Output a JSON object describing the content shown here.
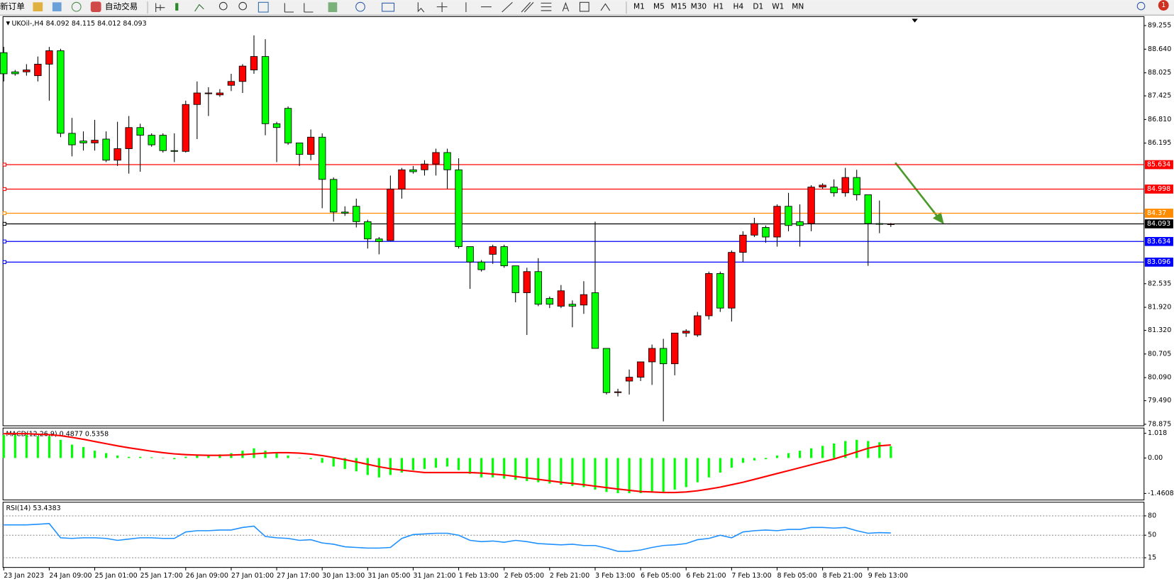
{
  "toolbar": {
    "new_order": "新订单",
    "auto_trading": "自动交易",
    "timeframes": [
      "M1",
      "M5",
      "M15",
      "M30",
      "H1",
      "H4",
      "D1",
      "W1",
      "MN"
    ],
    "notifications": 1
  },
  "chart_data": [
    {
      "type": "candlestick",
      "symbol": "UKOil-,H4",
      "categories": [
        "23 Jan 2023",
        null,
        null,
        null,
        "24 Jan 09:00",
        null,
        null,
        null,
        "25 Jan 01:00",
        null,
        null,
        null,
        "25 Jan 17:00",
        null,
        null,
        null,
        "26 Jan 09:00",
        null,
        null,
        null,
        "27 Jan 01:00",
        null,
        null,
        null,
        "27 Jan 17:00",
        null,
        null,
        null,
        "30 Jan 13:00",
        null,
        null,
        null,
        "31 Jan 05:00",
        null,
        null,
        null,
        "31 Jan 21:00",
        null,
        null,
        null,
        "1 Feb 13:00",
        null,
        null,
        null,
        "2 Feb 05:00",
        null,
        null,
        null,
        "2 Feb 21:00",
        null,
        null,
        null,
        "3 Feb 13:00",
        null,
        null,
        null,
        "6 Feb 05:00",
        null,
        null,
        null,
        "6 Feb 21:00",
        null,
        null,
        null,
        "7 Feb 13:00",
        null,
        null,
        null,
        "8 Feb 05:00",
        null,
        null,
        null,
        "8 Feb 21:00",
        null,
        null,
        null,
        "9 Feb 13:00",
        null,
        null
      ],
      "open": [
        88.55,
        88.05,
        88.05,
        87.95,
        88.25,
        88.6,
        86.45,
        86.25,
        86.2,
        86.3,
        85.75,
        86.05,
        86.6,
        86.4,
        86.4,
        86.0,
        85.98,
        87.2,
        87.5,
        87.45,
        87.7,
        87.8,
        88.1,
        88.45,
        86.7,
        87.1,
        86.2,
        85.9,
        86.35,
        85.25,
        84.4,
        84.55,
        84.15,
        83.7,
        83.66,
        85.0,
        85.5,
        85.5,
        85.65,
        85.95,
        85.5,
        83.5,
        83.1,
        83.3,
        83.5,
        83.0,
        82.3,
        82.85,
        82.15,
        81.95,
        82.0,
        81.98,
        82.3,
        80.85,
        79.7,
        80.0,
        80.1,
        80.5,
        80.85,
        80.45,
        81.25,
        81.2,
        81.7,
        82.8,
        81.9,
        83.35,
        83.8,
        84.0,
        83.75,
        84.55,
        84.15,
        84.1,
        85.05,
        85.05,
        84.9,
        85.3,
        84.85,
        84.1,
        84.092
      ],
      "high": [
        88.7,
        88.1,
        88.25,
        88.45,
        88.7,
        88.65,
        86.85,
        86.5,
        86.8,
        86.5,
        86.75,
        86.9,
        86.7,
        86.45,
        86.45,
        86.45,
        87.3,
        87.8,
        87.65,
        87.6,
        88.0,
        88.25,
        89.0,
        88.9,
        86.75,
        87.15,
        86.2,
        86.55,
        86.45,
        85.3,
        84.55,
        84.75,
        84.2,
        83.75,
        85.35,
        85.55,
        85.6,
        85.75,
        86.05,
        86.05,
        85.8,
        83.5,
        83.15,
        83.55,
        83.55,
        83.0,
        82.95,
        83.2,
        82.2,
        82.5,
        82.1,
        82.6,
        84.15,
        80.85,
        79.8,
        80.3,
        80.5,
        80.95,
        81.1,
        81.25,
        81.35,
        81.8,
        82.85,
        82.85,
        83.4,
        83.9,
        84.25,
        84.05,
        84.6,
        84.9,
        84.6,
        85.1,
        85.15,
        85.25,
        85.55,
        85.5,
        84.85,
        84.7,
        84.115
      ],
      "low": [
        87.8,
        87.95,
        87.95,
        87.8,
        87.3,
        86.35,
        85.85,
        86.0,
        86.0,
        85.7,
        85.6,
        85.4,
        85.45,
        86.1,
        85.95,
        85.7,
        85.95,
        86.3,
        86.9,
        87.4,
        87.55,
        87.5,
        88.0,
        86.4,
        85.7,
        86.15,
        85.6,
        85.75,
        84.5,
        84.15,
        84.3,
        84.0,
        83.45,
        83.3,
        83.65,
        84.75,
        85.4,
        85.35,
        85.35,
        85.0,
        83.45,
        82.4,
        82.85,
        83.05,
        82.95,
        82.05,
        81.2,
        81.95,
        81.9,
        81.9,
        81.4,
        81.75,
        80.85,
        79.65,
        79.6,
        79.65,
        80.0,
        79.9,
        78.95,
        80.15,
        81.15,
        81.15,
        81.6,
        81.8,
        81.55,
        83.1,
        83.75,
        83.6,
        83.5,
        83.9,
        83.5,
        83.9,
        85.0,
        84.8,
        84.8,
        84.7,
        83.0,
        83.85,
        84.012
      ],
      "close": [
        88.0,
        88.0,
        88.1,
        88.25,
        88.6,
        86.45,
        86.15,
        86.2,
        86.27,
        85.75,
        86.05,
        86.6,
        86.4,
        86.15,
        86.0,
        85.98,
        87.2,
        87.5,
        87.5,
        87.5,
        87.8,
        88.2,
        88.45,
        86.7,
        86.6,
        86.2,
        85.9,
        86.35,
        85.25,
        84.4,
        84.37,
        84.15,
        83.7,
        83.63,
        85.0,
        85.5,
        85.45,
        85.65,
        85.95,
        85.5,
        83.5,
        83.1,
        82.9,
        83.5,
        83.0,
        82.3,
        82.85,
        82.0,
        82.0,
        82.35,
        81.95,
        82.25,
        80.85,
        79.7,
        79.72,
        80.1,
        80.5,
        80.85,
        80.45,
        81.25,
        81.3,
        81.7,
        82.8,
        81.9,
        83.35,
        83.8,
        84.1,
        83.75,
        84.55,
        84.05,
        84.05,
        85.05,
        85.1,
        84.9,
        85.3,
        84.85,
        84.1,
        84.09,
        84.093
      ],
      "up_color": "#ff0000",
      "down_color": "#00ff00",
      "ylim": [
        78.836,
        89.489
      ],
      "yticks": [
        89.255,
        {
          "value": 88.64,
          "label": "88.640"
        },
        88.025,
        87.425,
        {
          "value": 86.81,
          "label": "86.810"
        },
        86.195,
        82.535,
        {
          "value": 81.92,
          "label": "81.920"
        },
        {
          "value": 81.32,
          "label": "81.320"
        },
        80.705,
        {
          "value": 80.09,
          "label": "80.090"
        },
        {
          "value": 79.49,
          "label": "79.490"
        },
        78.875
      ],
      "levels": [
        {
          "value": 85.634,
          "color": "#ff0000"
        },
        {
          "value": 84.998,
          "color": "#ff0000"
        },
        {
          "value": 84.37,
          "color": "#ff8c00"
        },
        {
          "value": 84.093,
          "color": "#000000"
        },
        {
          "value": 83.634,
          "color": "#0000ff"
        },
        {
          "value": 83.096,
          "color": "#0000ff"
        }
      ]
    },
    {
      "type": "macd",
      "name": "MACD(12,26,9)",
      "histogram": {
        "color": "#00ff00",
        "values": [
          0.95,
          0.95,
          0.95,
          0.9,
          0.9,
          0.75,
          0.55,
          0.45,
          0.3,
          0.2,
          0.1,
          0.05,
          0.05,
          0.03,
          0.0,
          -0.05,
          0.05,
          0.1,
          0.1,
          0.15,
          0.2,
          0.3,
          0.4,
          0.3,
          0.2,
          0.1,
          0.0,
          -0.05,
          -0.2,
          -0.35,
          -0.45,
          -0.55,
          -0.7,
          -0.8,
          -0.7,
          -0.6,
          -0.5,
          -0.45,
          -0.4,
          -0.35,
          -0.5,
          -0.65,
          -0.8,
          -0.8,
          -0.85,
          -0.9,
          -0.95,
          -1.0,
          -1.05,
          -1.1,
          -1.15,
          -1.2,
          -1.3,
          -1.4,
          -1.45,
          -1.45,
          -1.45,
          -1.4,
          -1.4,
          -1.3,
          -1.2,
          -1.0,
          -0.8,
          -0.6,
          -0.4,
          -0.2,
          -0.1,
          -0.05,
          0.1,
          0.2,
          0.3,
          0.4,
          0.5,
          0.6,
          0.7,
          0.75,
          0.7,
          0.65,
          0.4877
        ]
      },
      "signal": {
        "color": "#ff0000",
        "values": [
          1.0,
          1.0,
          1.0,
          0.98,
          0.96,
          0.92,
          0.85,
          0.77,
          0.68,
          0.59,
          0.5,
          0.42,
          0.35,
          0.28,
          0.22,
          0.17,
          0.14,
          0.12,
          0.11,
          0.11,
          0.12,
          0.14,
          0.17,
          0.2,
          0.22,
          0.22,
          0.2,
          0.16,
          0.1,
          0.02,
          -0.07,
          -0.16,
          -0.26,
          -0.36,
          -0.44,
          -0.5,
          -0.55,
          -0.6,
          -0.6,
          -0.6,
          -0.6,
          -0.6,
          -0.62,
          -0.66,
          -0.7,
          -0.76,
          -0.82,
          -0.88,
          -0.94,
          -1.0,
          -1.05,
          -1.1,
          -1.16,
          -1.22,
          -1.28,
          -1.33,
          -1.38,
          -1.4,
          -1.42,
          -1.42,
          -1.4,
          -1.35,
          -1.28,
          -1.2,
          -1.1,
          -1.0,
          -0.88,
          -0.76,
          -0.64,
          -0.52,
          -0.4,
          -0.28,
          -0.16,
          -0.04,
          0.1,
          0.25,
          0.4,
          0.5,
          0.5358
        ]
      },
      "ylim": [
        -1.698,
        1.204
      ],
      "yticks": [
        1.018,
        {
          "value": 0,
          "label": "0.00"
        },
        -1.4608
      ]
    },
    {
      "type": "rsi",
      "name": "RSI(14)",
      "color": "#1e90ff",
      "values": [
        66,
        66,
        66,
        67,
        68,
        46,
        45,
        46,
        46,
        45,
        42,
        44,
        46,
        46,
        45,
        45,
        55,
        57,
        57,
        58,
        58,
        62,
        64,
        48,
        46,
        45,
        42,
        43,
        38,
        36,
        32,
        31,
        30,
        30,
        31,
        45,
        51,
        52,
        53,
        53,
        50,
        42,
        40,
        41,
        39,
        42,
        40,
        37,
        36,
        35,
        36,
        34,
        34,
        30,
        25,
        25,
        27,
        31,
        34,
        35,
        37,
        43,
        45,
        50,
        46,
        55,
        57,
        58,
        57,
        59,
        59,
        62,
        62,
        61,
        62,
        57,
        53,
        54,
        53.4383
      ],
      "ylim": [
        0,
        100
      ],
      "yticks": [
        80,
        50,
        15
      ]
    }
  ]
}
